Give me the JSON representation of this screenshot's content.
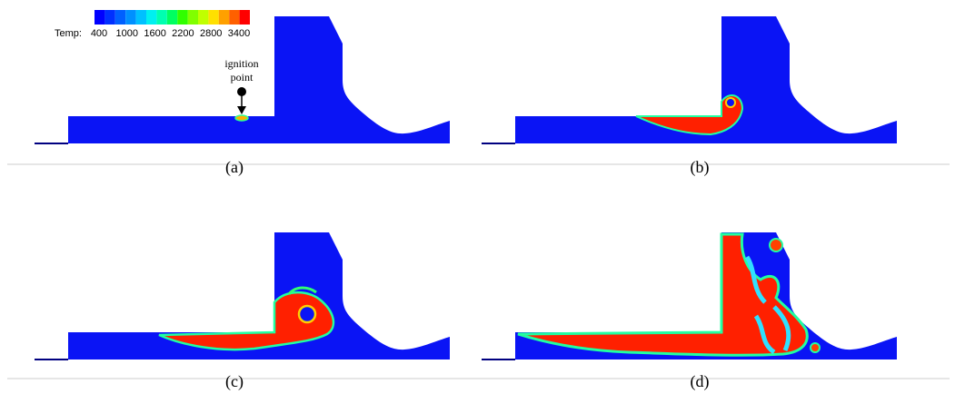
{
  "legend": {
    "label": "Temp:",
    "ticks": [
      400,
      1000,
      1600,
      2200,
      2800,
      3400
    ]
  },
  "annotation": {
    "lines": [
      "ignition",
      "point"
    ]
  },
  "panels": [
    {
      "label": "(a)"
    },
    {
      "label": "(b)"
    },
    {
      "label": "(c)"
    },
    {
      "label": "(d)"
    }
  ]
}
